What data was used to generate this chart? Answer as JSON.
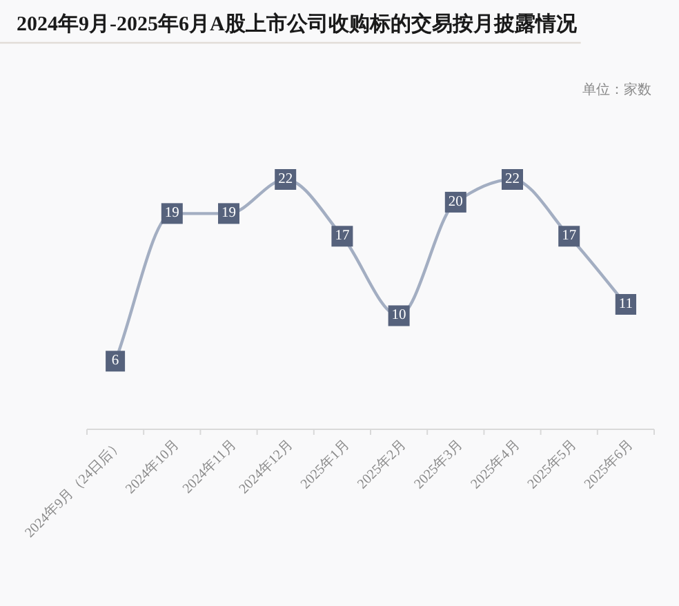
{
  "chart_data": {
    "type": "line",
    "title": "2024年9月-2025年6月A股上市公司收购标的交易按月披露情况",
    "annotations": [
      "单位：家数"
    ],
    "categories": [
      "2024年9月（24日后）",
      "2024年10月",
      "2024年11月",
      "2024年12月",
      "2025年1月",
      "2025年2月",
      "2025年3月",
      "2025年4月",
      "2025年5月",
      "2025年6月"
    ],
    "series": [
      {
        "color": "#a3aec2",
        "marker": "square",
        "values": [
          6,
          19,
          19,
          22,
          17,
          10,
          20,
          22,
          17,
          11
        ]
      }
    ],
    "data_labels": true,
    "line_style": "solid",
    "tick_labels": "x"
  }
}
